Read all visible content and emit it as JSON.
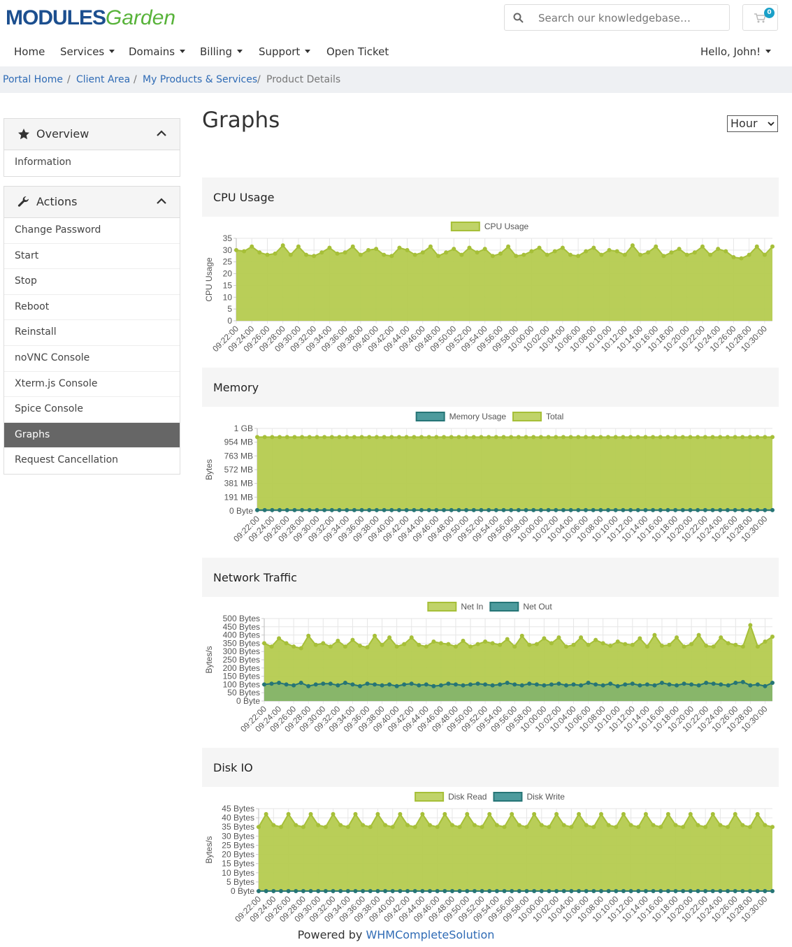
{
  "header": {
    "logo_main": "MODULES",
    "logo_sub": "Garden",
    "search_placeholder": "Search our knowledgebase…",
    "cart_count": 0
  },
  "nav": {
    "items": [
      "Home",
      "Services",
      "Domains",
      "Billing",
      "Support",
      "Open Ticket"
    ],
    "user": "Hello, John!"
  },
  "breadcrumb": [
    "Portal Home",
    "Client Area",
    "My Products & Services",
    "Product Details"
  ],
  "sidebar": {
    "panels": [
      {
        "title": "Overview",
        "items": [
          "Information"
        ]
      },
      {
        "title": "Actions",
        "items": [
          "Change Password",
          "Start",
          "Stop",
          "Reboot",
          "Reinstall",
          "noVNC Console",
          "Xterm.js Console",
          "Spice Console",
          "Graphs",
          "Request Cancellation"
        ]
      }
    ]
  },
  "main": {
    "title": "Graphs",
    "range_select": "Hour"
  },
  "chart_data": [
    {
      "type": "line",
      "title": "CPU Usage",
      "y_label": "CPU Usage",
      "grid": true,
      "legend": "top",
      "categories": [
        "09:22:00",
        null,
        "09:24:00",
        null,
        "09:26:00",
        null,
        "09:28:00",
        null,
        "09:30:00",
        null,
        "09:32:00",
        null,
        "09:34:00",
        null,
        "09:36:00",
        null,
        "09:38:00",
        null,
        "09:40:00",
        null,
        "09:42:00",
        null,
        "09:44:00",
        null,
        "09:46:00",
        null,
        "09:48:00",
        null,
        "09:50:00",
        null,
        "09:52:00",
        null,
        "09:54:00",
        null,
        "09:56:00",
        null,
        "09:58:00",
        null,
        "10:00:00",
        null,
        "10:02:00",
        null,
        "10:04:00",
        null,
        "10:06:00",
        null,
        "10:08:00",
        null,
        "10:10:00",
        null,
        "10:12:00",
        null,
        "10:14:00",
        null,
        "10:16:00",
        null,
        "10:18:00",
        null,
        "10:20:00",
        null,
        "10:22:00",
        null,
        "10:24:00",
        null,
        "10:26:00",
        null,
        "10:28:00",
        null,
        "10:30:00",
        null
      ],
      "series": [
        {
          "name": "CPU Usage",
          "color": "#b5cb4f",
          "values": [
            30,
            29.5,
            31.5,
            29,
            28,
            28.5,
            32,
            28,
            31.5,
            28,
            27.5,
            29,
            31,
            28.5,
            29,
            31.5,
            28,
            30,
            30.5,
            28,
            27.5,
            31,
            30,
            28,
            29,
            31.5,
            27.5,
            29,
            30.5,
            28,
            31,
            29,
            30.5,
            27.5,
            28.5,
            31.5,
            27.5,
            28,
            29.5,
            31,
            28,
            29.5,
            31,
            28,
            27.5,
            29.5,
            31,
            28,
            30,
            29.5,
            28,
            32,
            28,
            29,
            31.5,
            27.5,
            29,
            30.5,
            28,
            29,
            31.5,
            28,
            30.5,
            29.5,
            27,
            26.5,
            28,
            31.5,
            28,
            31.5
          ]
        }
      ],
      "ylim": [
        0,
        35
      ],
      "yticks": [
        0,
        5,
        10,
        15,
        20,
        25,
        30,
        35
      ]
    },
    {
      "type": "line",
      "title": "Memory",
      "y_label": "Bytes",
      "grid": true,
      "legend": "top",
      "categories": [
        "09:22:00",
        null,
        "09:24:00",
        null,
        "09:26:00",
        null,
        "09:28:00",
        null,
        "09:30:00",
        null,
        "09:32:00",
        null,
        "09:34:00",
        null,
        "09:36:00",
        null,
        "09:38:00",
        null,
        "09:40:00",
        null,
        "09:42:00",
        null,
        "09:44:00",
        null,
        "09:46:00",
        null,
        "09:48:00",
        null,
        "09:50:00",
        null,
        "09:52:00",
        null,
        "09:54:00",
        null,
        "09:56:00",
        null,
        "09:58:00",
        null,
        "10:00:00",
        null,
        "10:02:00",
        null,
        "10:04:00",
        null,
        "10:06:00",
        null,
        "10:08:00",
        null,
        "10:10:00",
        null,
        "10:12:00",
        null,
        "10:14:00",
        null,
        "10:16:00",
        null,
        "10:18:00",
        null,
        "10:20:00",
        null,
        "10:22:00",
        null,
        "10:24:00",
        null,
        "10:26:00",
        null,
        "10:28:00",
        null,
        "10:30:00",
        null
      ],
      "series": [
        {
          "name": "Memory Usage",
          "color": "#2e8a8c",
          "values": [
            12000000,
            12000000,
            12000000,
            12000000,
            12000000,
            12000000,
            12000000,
            12000000,
            12000000,
            12000000,
            12000000,
            12000000,
            12000000,
            12000000,
            12000000,
            12000000,
            12000000,
            12000000,
            12000000,
            12000000,
            12000000,
            12000000,
            12000000,
            12000000,
            12000000,
            12000000,
            12000000,
            12000000,
            12000000,
            12000000,
            12000000,
            12000000,
            12000000,
            12000000,
            12000000,
            12000000,
            12000000,
            12000000,
            12000000,
            12000000,
            12000000,
            12000000,
            12000000,
            12000000,
            12000000,
            12000000,
            12000000,
            12000000,
            12000000,
            12000000,
            12000000,
            12000000,
            12000000,
            12000000,
            12000000,
            12000000,
            12000000,
            12000000,
            12000000,
            12000000,
            12000000,
            12000000,
            12000000,
            12000000,
            12000000,
            12000000,
            12000000,
            12000000,
            12000000,
            12000000
          ]
        },
        {
          "name": "Total",
          "color": "#b5cb4f",
          "values": [
            1073741824,
            1073741824,
            1073741824,
            1073741824,
            1073741824,
            1073741824,
            1073741824,
            1073741824,
            1073741824,
            1073741824,
            1073741824,
            1073741824,
            1073741824,
            1073741824,
            1073741824,
            1073741824,
            1073741824,
            1073741824,
            1073741824,
            1073741824,
            1073741824,
            1073741824,
            1073741824,
            1073741824,
            1073741824,
            1073741824,
            1073741824,
            1073741824,
            1073741824,
            1073741824,
            1073741824,
            1073741824,
            1073741824,
            1073741824,
            1073741824,
            1073741824,
            1073741824,
            1073741824,
            1073741824,
            1073741824,
            1073741824,
            1073741824,
            1073741824,
            1073741824,
            1073741824,
            1073741824,
            1073741824,
            1073741824,
            1073741824,
            1073741824,
            1073741824,
            1073741824,
            1073741824,
            1073741824,
            1073741824,
            1073741824,
            1073741824,
            1073741824,
            1073741824,
            1073741824,
            1073741824,
            1073741824,
            1073741824,
            1073741824,
            1073741824,
            1073741824,
            1073741824,
            1073741824,
            1073741824,
            1073741824
          ]
        }
      ],
      "ylim": [
        0,
        1200000000
      ],
      "yticks": [
        {
          "value": 0,
          "label": "0 Byte"
        },
        {
          "value": 200000000,
          "label": "191 MB"
        },
        {
          "value": 400000000,
          "label": "381 MB"
        },
        {
          "value": 600000000,
          "label": "572 MB"
        },
        {
          "value": 800000000,
          "label": "763 MB"
        },
        {
          "value": 1000000000,
          "label": "954 MB"
        },
        {
          "value": 1200000000,
          "label": "1 GB"
        }
      ]
    },
    {
      "type": "line",
      "title": "Network Traffic",
      "y_label": "Bytes/s",
      "grid": true,
      "legend": "top",
      "categories": [
        "09:22:00",
        null,
        "09:24:00",
        null,
        "09:26:00",
        null,
        "09:28:00",
        null,
        "09:30:00",
        null,
        "09:32:00",
        null,
        "09:34:00",
        null,
        "09:36:00",
        null,
        "09:38:00",
        null,
        "09:40:00",
        null,
        "09:42:00",
        null,
        "09:44:00",
        null,
        "09:46:00",
        null,
        "09:48:00",
        null,
        "09:50:00",
        null,
        "09:52:00",
        null,
        "09:54:00",
        null,
        "09:56:00",
        null,
        "09:58:00",
        null,
        "10:00:00",
        null,
        "10:02:00",
        null,
        "10:04:00",
        null,
        "10:06:00",
        null,
        "10:08:00",
        null,
        "10:10:00",
        null,
        "10:12:00",
        null,
        "10:14:00",
        null,
        "10:16:00",
        null,
        "10:18:00",
        null,
        "10:20:00",
        null,
        "10:22:00",
        null,
        "10:24:00",
        null,
        "10:26:00",
        null,
        "10:28:00",
        null,
        "10:30:00",
        null
      ],
      "series": [
        {
          "name": "Net In",
          "color": "#b5cb4f",
          "values": [
            350,
            330,
            380,
            350,
            330,
            320,
            395,
            340,
            350,
            330,
            365,
            330,
            370,
            335,
            325,
            395,
            340,
            385,
            330,
            345,
            385,
            340,
            330,
            360,
            350,
            345,
            330,
            365,
            330,
            345,
            360,
            350,
            340,
            375,
            330,
            395,
            340,
            345,
            380,
            350,
            385,
            330,
            340,
            385,
            340,
            370,
            350,
            335,
            360,
            345,
            340,
            380,
            330,
            400,
            335,
            340,
            385,
            330,
            345,
            400,
            335,
            330,
            385,
            350,
            340,
            330,
            460,
            330,
            360,
            390
          ]
        },
        {
          "name": "Net Out",
          "color": "#2e8a8c",
          "values": [
            100,
            105,
            110,
            100,
            95,
            110,
            90,
            100,
            105,
            105,
            95,
            110,
            100,
            90,
            105,
            100,
            95,
            100,
            90,
            100,
            105,
            95,
            100,
            90,
            95,
            105,
            100,
            95,
            100,
            105,
            100,
            95,
            100,
            110,
            100,
            95,
            105,
            100,
            95,
            100,
            105,
            95,
            100,
            95,
            110,
            100,
            95,
            105,
            90,
            100,
            105,
            95,
            100,
            95,
            110,
            100,
            95,
            105,
            100,
            95,
            110,
            105,
            100,
            95,
            110,
            115,
            95,
            100,
            90,
            110
          ]
        }
      ],
      "ylim": [
        0,
        500
      ],
      "yticks": [
        {
          "value": 0,
          "label": "0 Byte"
        },
        {
          "value": 50,
          "label": "50 Bytes"
        },
        {
          "value": 100,
          "label": "100 Bytes"
        },
        {
          "value": 150,
          "label": "150 Bytes"
        },
        {
          "value": 200,
          "label": "200 Bytes"
        },
        {
          "value": 250,
          "label": "250 Bytes"
        },
        {
          "value": 300,
          "label": "300 Bytes"
        },
        {
          "value": 350,
          "label": "350 Bytes"
        },
        {
          "value": 400,
          "label": "400 Bytes"
        },
        {
          "value": 450,
          "label": "450 Bytes"
        },
        {
          "value": 500,
          "label": "500 Bytes"
        }
      ]
    },
    {
      "type": "line",
      "title": "Disk IO",
      "y_label": "Bytes/s",
      "grid": true,
      "legend": "top",
      "categories": [
        "09:22:00",
        null,
        "09:24:00",
        null,
        "09:26:00",
        null,
        "09:28:00",
        null,
        "09:30:00",
        null,
        "09:32:00",
        null,
        "09:34:00",
        null,
        "09:36:00",
        null,
        "09:38:00",
        null,
        "09:40:00",
        null,
        "09:42:00",
        null,
        "09:44:00",
        null,
        "09:46:00",
        null,
        "09:48:00",
        null,
        "09:50:00",
        null,
        "09:52:00",
        null,
        "09:54:00",
        null,
        "09:56:00",
        null,
        "09:58:00",
        null,
        "10:00:00",
        null,
        "10:02:00",
        null,
        "10:04:00",
        null,
        "10:06:00",
        null,
        "10:08:00",
        null,
        "10:10:00",
        null,
        "10:12:00",
        null,
        "10:14:00",
        null,
        "10:16:00",
        null,
        "10:18:00",
        null,
        "10:20:00",
        null,
        "10:22:00",
        null,
        "10:24:00",
        null,
        "10:26:00",
        null,
        "10:28:00",
        null,
        "10:30:00",
        null
      ],
      "series": [
        {
          "name": "Disk Read",
          "color": "#b5cb4f",
          "values": [
            35,
            42,
            36,
            35,
            42,
            36,
            35,
            42,
            36,
            35,
            42,
            36,
            35,
            42,
            36,
            35,
            42,
            36,
            35,
            42,
            36,
            35,
            42,
            36,
            35,
            42,
            36,
            35,
            42,
            36,
            35,
            42,
            36,
            35,
            42,
            36,
            35,
            42,
            36,
            35,
            42,
            36,
            35,
            42,
            36,
            35,
            42,
            36,
            35,
            42,
            36,
            35,
            42,
            36,
            35,
            42,
            36,
            35,
            42,
            36,
            35,
            42,
            36,
            35,
            42,
            36,
            35,
            42,
            36,
            35
          ]
        },
        {
          "name": "Disk Write",
          "color": "#2e8a8c",
          "values": [
            0,
            0,
            0,
            0,
            0,
            0,
            0,
            0,
            0,
            0,
            0,
            0,
            0,
            0,
            0,
            0,
            0,
            0,
            0,
            0,
            0,
            0,
            0,
            0,
            0,
            0,
            0,
            0,
            0,
            0,
            0,
            0,
            0,
            0,
            0,
            0,
            0,
            0,
            0,
            0,
            0,
            0,
            0,
            0,
            0,
            0,
            0,
            0,
            0,
            0,
            0,
            0,
            0,
            0,
            0,
            0,
            0,
            0,
            0,
            0,
            0,
            0,
            0,
            0,
            0,
            0,
            0,
            0,
            0,
            0
          ]
        }
      ],
      "ylim": [
        0,
        45
      ],
      "yticks": [
        {
          "value": 0,
          "label": "0 Byte"
        },
        {
          "value": 5,
          "label": "5 Bytes"
        },
        {
          "value": 10,
          "label": "10 Bytes"
        },
        {
          "value": 15,
          "label": "15 Bytes"
        },
        {
          "value": 20,
          "label": "20 Bytes"
        },
        {
          "value": 25,
          "label": "25 Bytes"
        },
        {
          "value": 30,
          "label": "30 Bytes"
        },
        {
          "value": 35,
          "label": "35 Bytes"
        },
        {
          "value": 40,
          "label": "40 Bytes"
        },
        {
          "value": 45,
          "label": "45 Bytes"
        }
      ]
    }
  ],
  "footer": {
    "text": "Powered by",
    "link": "WHMCompleteSolution"
  }
}
